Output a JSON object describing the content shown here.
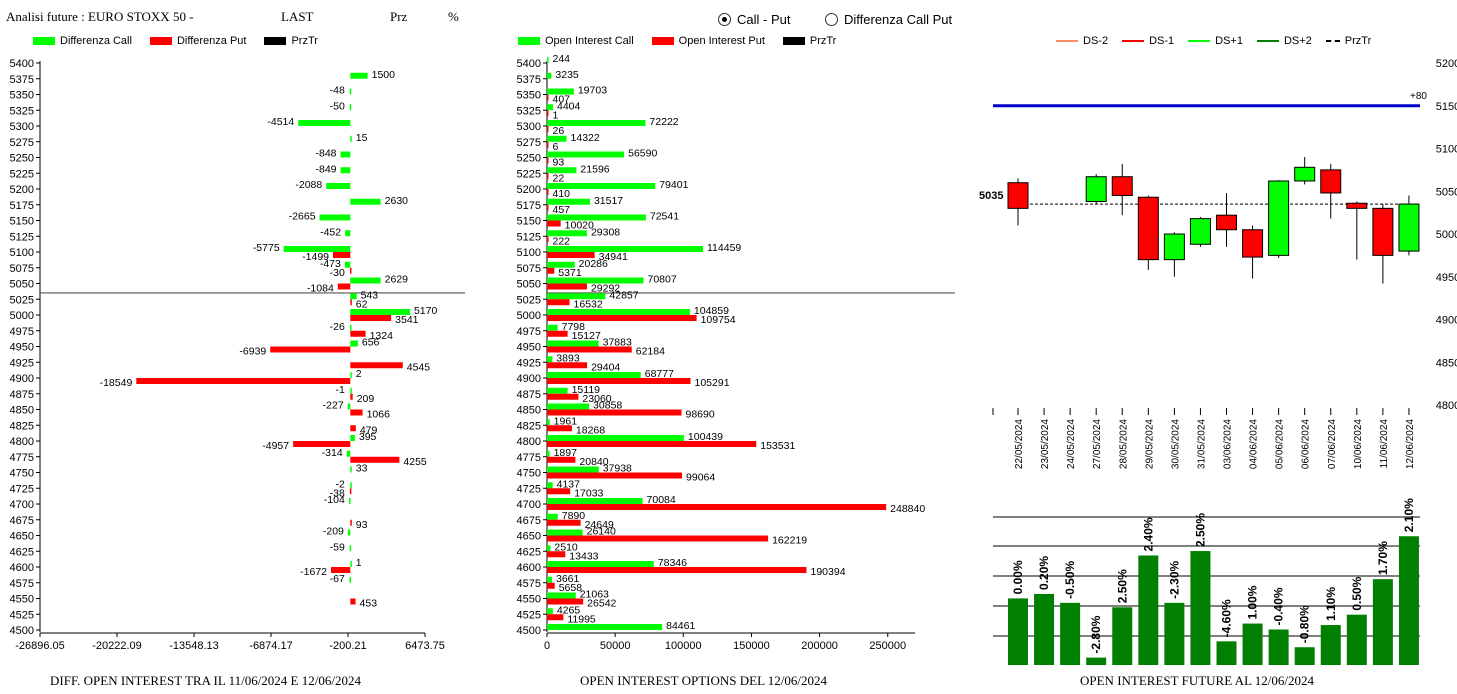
{
  "header": {
    "title": "Analisi future : EURO STOXX 50 -",
    "last_label": "LAST",
    "prz_label": "Prz",
    "pct_label": "%"
  },
  "radios": [
    {
      "label": "Call - Put",
      "selected": true
    },
    {
      "label": "Differenza Call Put",
      "selected": false
    }
  ],
  "colors": {
    "green": "#00ff00",
    "red": "#ff0000",
    "black": "#000000",
    "dark_green": "#007f00",
    "blue": "#0000cc",
    "orange": "#ff8c69"
  },
  "captions": {
    "left": "DIFF. OPEN INTEREST TRA IL 11/06/2024 E 12/06/2024",
    "middle": "OPEN INTEREST OPTIONS DEL 12/06/2024",
    "right": "OPEN INTEREST FUTURE AL 12/06/2024"
  },
  "chart_data": [
    {
      "type": "bar",
      "orientation": "horizontal",
      "legend": [
        "Differenza Call",
        "Differenza Put",
        "PrzTr"
      ],
      "categories": [
        5400,
        5375,
        5350,
        5325,
        5300,
        5275,
        5250,
        5225,
        5200,
        5175,
        5150,
        5125,
        5100,
        5075,
        5050,
        5025,
        5000,
        4975,
        4950,
        4925,
        4900,
        4875,
        4850,
        4825,
        4800,
        4775,
        4750,
        4725,
        4700,
        4675,
        4650,
        4625,
        4600,
        4575,
        4550,
        4525,
        4500
      ],
      "series": [
        {
          "name": "Differenza Call",
          "values": [
            null,
            1500,
            -48,
            -50,
            -4514,
            15,
            -848,
            -849,
            -2088,
            2630,
            -2665,
            -452,
            -5775,
            -473,
            2629,
            543,
            5170,
            -26,
            656,
            null,
            2,
            -1,
            -227,
            null,
            395,
            -314,
            33,
            -2,
            -104,
            null,
            -209,
            -59,
            1,
            -67,
            null,
            null,
            null
          ]
        },
        {
          "name": "Differenza Put",
          "values": [
            null,
            null,
            null,
            null,
            null,
            null,
            null,
            null,
            null,
            null,
            null,
            null,
            -1499,
            -30,
            -1084,
            62,
            3541,
            1324,
            -6939,
            4545,
            -18549,
            209,
            1066,
            479,
            -4957,
            4255,
            null,
            -38,
            null,
            93,
            null,
            null,
            -1672,
            null,
            453,
            null,
            null
          ]
        }
      ],
      "przTr": 5035,
      "xticks": [
        "-26896.05",
        "-20222.09",
        "-13548.13",
        "-6874.17",
        "-200.21",
        "6473.75"
      ],
      "xlim": [
        -26896.05,
        6473.75
      ]
    },
    {
      "type": "bar",
      "orientation": "horizontal",
      "legend": [
        "Open Interest Call",
        "Open Interest Put",
        "PrzTr"
      ],
      "categories": [
        5400,
        5375,
        5350,
        5325,
        5300,
        5275,
        5250,
        5225,
        5200,
        5175,
        5150,
        5125,
        5100,
        5075,
        5050,
        5025,
        5000,
        4975,
        4950,
        4925,
        4900,
        4875,
        4850,
        4825,
        4800,
        4775,
        4750,
        4725,
        4700,
        4675,
        4650,
        4625,
        4600,
        4575,
        4550,
        4525,
        4500
      ],
      "series": [
        {
          "name": "Open Interest Call",
          "values": [
            244,
            3235,
            19703,
            4404,
            72222,
            14322,
            56590,
            21596,
            79401,
            31517,
            72541,
            29308,
            114459,
            20286,
            70807,
            42857,
            104859,
            7798,
            37883,
            3893,
            68777,
            15119,
            30858,
            1961,
            100439,
            1897,
            37938,
            4137,
            70084,
            7890,
            26140,
            2510,
            78346,
            3661,
            21063,
            4265,
            84461
          ]
        },
        {
          "name": "Open Interest Put",
          "values": [
            null,
            null,
            407,
            1,
            26,
            6,
            93,
            22,
            410,
            457,
            10020,
            222,
            34941,
            5371,
            29292,
            16532,
            109754,
            15127,
            62184,
            29404,
            105291,
            23060,
            98690,
            18268,
            153531,
            20840,
            99064,
            17033,
            248840,
            24649,
            162219,
            13433,
            190394,
            5658,
            26542,
            11995,
            null
          ]
        }
      ],
      "przTr": 5035,
      "xticks": [
        "0",
        "50000",
        "100000",
        "150000",
        "200000",
        "250000"
      ],
      "xlim": [
        0,
        270000
      ]
    },
    {
      "type": "candlestick",
      "legend": [
        "DS-2",
        "DS-1",
        "DS+1",
        "DS+2",
        "PrzTr"
      ],
      "categories": [
        "22/05/2024",
        "23/05/2024",
        "24/05/2024",
        "27/05/2024",
        "28/05/2024",
        "29/05/2024",
        "30/05/2024",
        "31/05/2024",
        "03/06/2024",
        "04/06/2024",
        "05/06/2024",
        "06/06/2024",
        "07/06/2024",
        "10/06/2024",
        "11/06/2024",
        "12/06/2024"
      ],
      "candles": [
        {
          "open": 5060,
          "close": 5030,
          "high": 5065,
          "low": 5010
        },
        null,
        null,
        {
          "open": 5038,
          "close": 5067,
          "high": 5070,
          "low": 5035
        },
        {
          "open": 5067,
          "close": 5045,
          "high": 5082,
          "low": 5022
        },
        {
          "open": 5043,
          "close": 4970,
          "high": 5045,
          "low": 4958
        },
        {
          "open": 4970,
          "close": 5000,
          "high": 5002,
          "low": 4950
        },
        {
          "open": 4988,
          "close": 5018,
          "high": 5020,
          "low": 4985
        },
        {
          "open": 5022,
          "close": 5005,
          "high": 5048,
          "low": 4985
        },
        {
          "open": 5005,
          "close": 4973,
          "high": 5010,
          "low": 4948
        },
        {
          "open": 4975,
          "close": 5062,
          "high": 5063,
          "low": 4972
        },
        {
          "open": 5062,
          "close": 5078,
          "high": 5090,
          "low": 5058
        },
        {
          "open": 5075,
          "close": 5048,
          "high": 5082,
          "low": 5018
        },
        {
          "open": 5036,
          "close": 5030,
          "high": 5038,
          "low": 4970
        },
        {
          "open": 5030,
          "close": 4975,
          "high": 5035,
          "low": 4942
        },
        {
          "open": 4980,
          "close": 5035,
          "high": 5045,
          "low": 4975
        }
      ],
      "przTr": 5035,
      "przTr_label": "5035",
      "blue_level": 5150,
      "blue_label": "+80",
      "yticks": [
        4800,
        4850,
        4900,
        4950,
        5000,
        5050,
        5100,
        5150,
        5200
      ],
      "ylim": [
        4800,
        5200
      ]
    },
    {
      "type": "bar",
      "categories": [
        "22/05/2024",
        "23/05/2024",
        "24/05/2024",
        "27/05/2024",
        "28/05/2024",
        "29/05/2024",
        "30/05/2024",
        "31/05/2024",
        "03/06/2024",
        "04/06/2024",
        "05/06/2024",
        "06/06/2024",
        "07/06/2024",
        "10/06/2024",
        "11/06/2024",
        "12/06/2024"
      ],
      "values": [
        0.0,
        0.2,
        -0.5,
        -2.8,
        2.5,
        2.4,
        -2.3,
        2.5,
        -4.6,
        1.0,
        -0.4,
        -0.8,
        1.1,
        0.5,
        1.7,
        2.1
      ],
      "labels": [
        "0.00%",
        "0.20%",
        "-0.50%",
        "-2.80%",
        "2.50%",
        "2.40%",
        "-2.30%",
        "2.50%",
        "-4.60%",
        "1.00%",
        "-0.40%",
        "-0.80%",
        "1.10%",
        "0.50%",
        "1.70%",
        "2.10%"
      ],
      "relative_heights": [
        0.45,
        0.48,
        0.42,
        0.05,
        0.39,
        0.74,
        0.42,
        0.77,
        0.16,
        0.28,
        0.24,
        0.12,
        0.27,
        0.34,
        0.58,
        0.87
      ]
    }
  ]
}
